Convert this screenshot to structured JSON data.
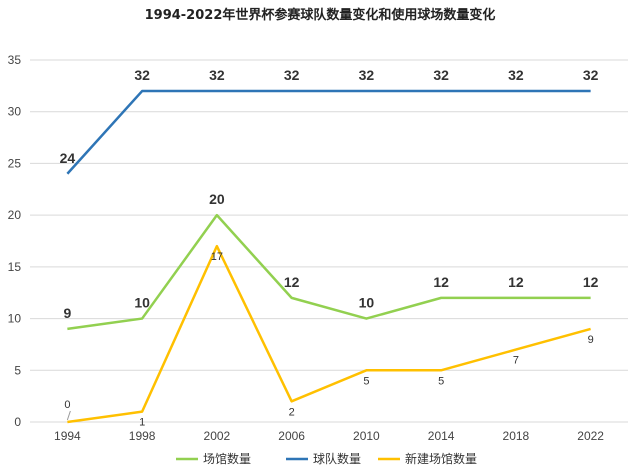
{
  "chart_data": {
    "type": "line",
    "title": "1994-2022年世界杯参赛球队数量变化和使用球场数量变化",
    "categories": [
      "1994",
      "1998",
      "2002",
      "2006",
      "2010",
      "2014",
      "2018",
      "2022"
    ],
    "ylim": [
      0,
      35
    ],
    "yticks": [
      0,
      5,
      10,
      15,
      20,
      25,
      30,
      35
    ],
    "grid": true,
    "legend_position": "bottom",
    "series": [
      {
        "name": "场馆数量",
        "color": "#92d050",
        "values": [
          9,
          10,
          20,
          12,
          10,
          12,
          12,
          12
        ],
        "labels": [
          "9",
          "10",
          "20",
          "12",
          "10",
          "12",
          "12",
          "12"
        ]
      },
      {
        "name": "球队数量",
        "color": "#2e75b6",
        "values": [
          24,
          32,
          32,
          32,
          32,
          32,
          32,
          32
        ],
        "labels": [
          "24",
          "32",
          "32",
          "32",
          "32",
          "32",
          "32",
          "32"
        ]
      },
      {
        "name": "新建场馆数量",
        "color": "#ffc000",
        "values": [
          0,
          1,
          17,
          2,
          5,
          5,
          7,
          9
        ],
        "labels": [
          "0",
          "1",
          "17",
          "2",
          "5",
          "5",
          "7",
          "9"
        ]
      }
    ]
  }
}
